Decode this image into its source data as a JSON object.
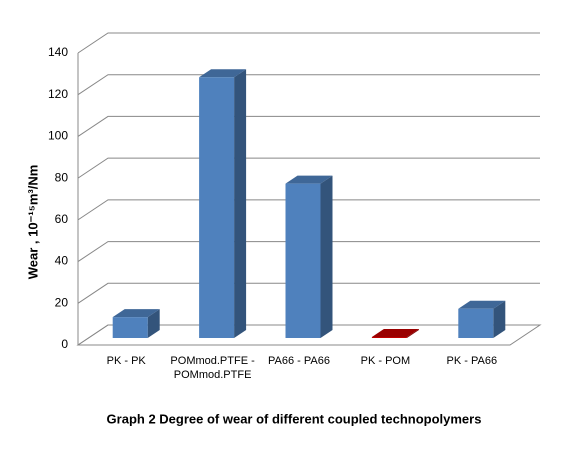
{
  "chart_data": {
    "type": "bar3d",
    "title": "Graph 2 Degree of wear of different coupled technopolymers",
    "y_label": "Wear   , 10⁻¹⁵m³/Nm",
    "categories": [
      "PK - PK",
      "POMmod.PTFE - POMmod.PTFE",
      "PA66 - PA66",
      "PK - POM",
      "PK - PA66"
    ],
    "values": [
      10,
      125,
      74,
      0.5,
      14
    ],
    "colors": [
      "#4f81bd",
      "#4f81bd",
      "#4f81bd",
      "#c00000",
      "#4f81bd"
    ],
    "ylim": [
      0,
      140
    ],
    "yticks": [
      0,
      20,
      40,
      60,
      80,
      100,
      120,
      140
    ],
    "grid": true
  }
}
